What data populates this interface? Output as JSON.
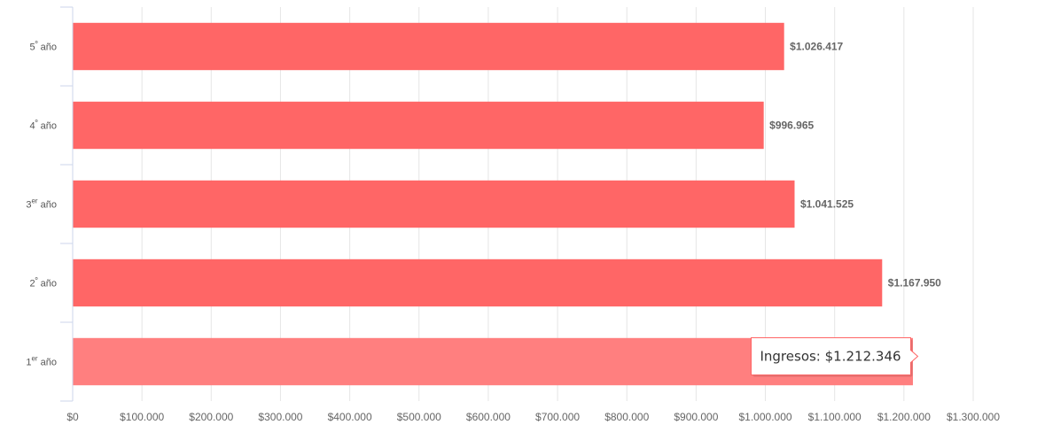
{
  "chart_data": {
    "type": "bar",
    "orientation": "horizontal",
    "title": "",
    "xlabel": "",
    "ylabel": "",
    "xlim": [
      0,
      1300000
    ],
    "x_tick_values": [
      0,
      100000,
      200000,
      300000,
      400000,
      500000,
      600000,
      700000,
      800000,
      900000,
      1000000,
      1100000,
      1200000,
      1300000
    ],
    "x_tick_labels": [
      "$0",
      "$100.000",
      "$200.000",
      "$300.000",
      "$400.000",
      "$500.000",
      "$600.000",
      "$700.000",
      "$800.000",
      "$900.000",
      "$1.000.000",
      "$1.100.000",
      "$1.200.000",
      "$1.300.000"
    ],
    "grid": true,
    "categories": [
      {
        "num": "1",
        "sup": "er",
        "word": "año"
      },
      {
        "num": "2",
        "sup": "º",
        "word": "año"
      },
      {
        "num": "3",
        "sup": "er",
        "word": "año"
      },
      {
        "num": "4",
        "sup": "º",
        "word": "año"
      },
      {
        "num": "5",
        "sup": "º",
        "word": "año"
      }
    ],
    "values": [
      1212346,
      1167950,
      1041525,
      996965,
      1026417
    ],
    "data_labels": [
      "",
      "$1.167.950",
      "$1.041.525",
      "$996.965",
      "$1.026.417"
    ],
    "bar_color": "#ff6666",
    "hover_color": "#ff7f7f",
    "hover_index": 0,
    "tooltip": {
      "series_name": "Ingresos",
      "value_text": "$1.212.346"
    }
  }
}
